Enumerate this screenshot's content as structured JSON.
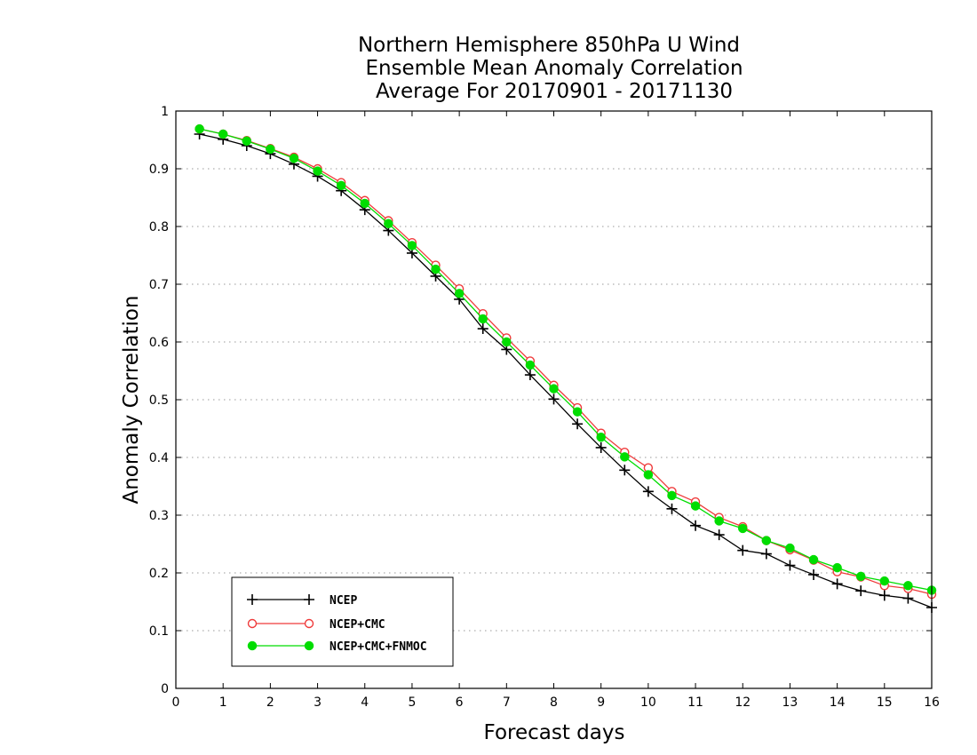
{
  "chart_data": {
    "type": "line",
    "title_lines": [
      "Northern Hemisphere 850hPa U Wind",
      "Ensemble Mean Anomaly Correlation",
      "Average For 20170901 - 20171130"
    ],
    "xlabel": "Forecast days",
    "ylabel": "Anomaly Correlation",
    "xlim": [
      0,
      16
    ],
    "ylim": [
      0,
      1
    ],
    "xticks": [
      "0",
      "1",
      "2",
      "3",
      "4",
      "5",
      "6",
      "7",
      "8",
      "9",
      "10",
      "11",
      "12",
      "13",
      "14",
      "15",
      "16"
    ],
    "yticks": [
      "0",
      "0.1",
      "0.2",
      "0.3",
      "0.4",
      "0.5",
      "0.6",
      "0.7",
      "0.8",
      "0.9",
      "1"
    ],
    "grid": "horizontal dotted",
    "legend_position": "bottom-left",
    "x": [
      0.5,
      1,
      1.5,
      2,
      2.5,
      3,
      3.5,
      4,
      4.5,
      5,
      5.5,
      6,
      6.5,
      7,
      7.5,
      8,
      8.5,
      9,
      9.5,
      10,
      10.5,
      11,
      11.5,
      12,
      12.5,
      13,
      13.5,
      14,
      14.5,
      15,
      15.5,
      16
    ],
    "series": [
      {
        "name": "NCEP",
        "color": "#000000",
        "marker": "plus",
        "values": [
          0.96,
          0.951,
          0.94,
          0.926,
          0.908,
          0.887,
          0.862,
          0.829,
          0.793,
          0.754,
          0.714,
          0.674,
          0.623,
          0.587,
          0.543,
          0.501,
          0.458,
          0.417,
          0.378,
          0.341,
          0.311,
          0.282,
          0.266,
          0.239,
          0.233,
          0.213,
          0.197,
          0.181,
          0.169,
          0.161,
          0.156,
          0.14
        ]
      },
      {
        "name": "NCEP+CMC",
        "color": "#ef3b3b",
        "marker": "open-circle",
        "values": [
          0.969,
          0.96,
          0.949,
          0.935,
          0.92,
          0.9,
          0.876,
          0.845,
          0.81,
          0.772,
          0.733,
          0.692,
          0.649,
          0.607,
          0.567,
          0.525,
          0.486,
          0.442,
          0.409,
          0.382,
          0.341,
          0.323,
          0.296,
          0.28,
          0.256,
          0.24,
          0.222,
          0.202,
          0.193,
          0.178,
          0.173,
          0.163
        ]
      },
      {
        "name": "NCEP+CMC+FNMOC",
        "color": "#00dd00",
        "marker": "filled-circle",
        "values": [
          0.969,
          0.96,
          0.948,
          0.934,
          0.918,
          0.896,
          0.871,
          0.84,
          0.805,
          0.767,
          0.726,
          0.684,
          0.64,
          0.6,
          0.56,
          0.519,
          0.479,
          0.435,
          0.401,
          0.37,
          0.334,
          0.316,
          0.29,
          0.277,
          0.256,
          0.243,
          0.223,
          0.209,
          0.194,
          0.186,
          0.178,
          0.17
        ]
      }
    ]
  }
}
